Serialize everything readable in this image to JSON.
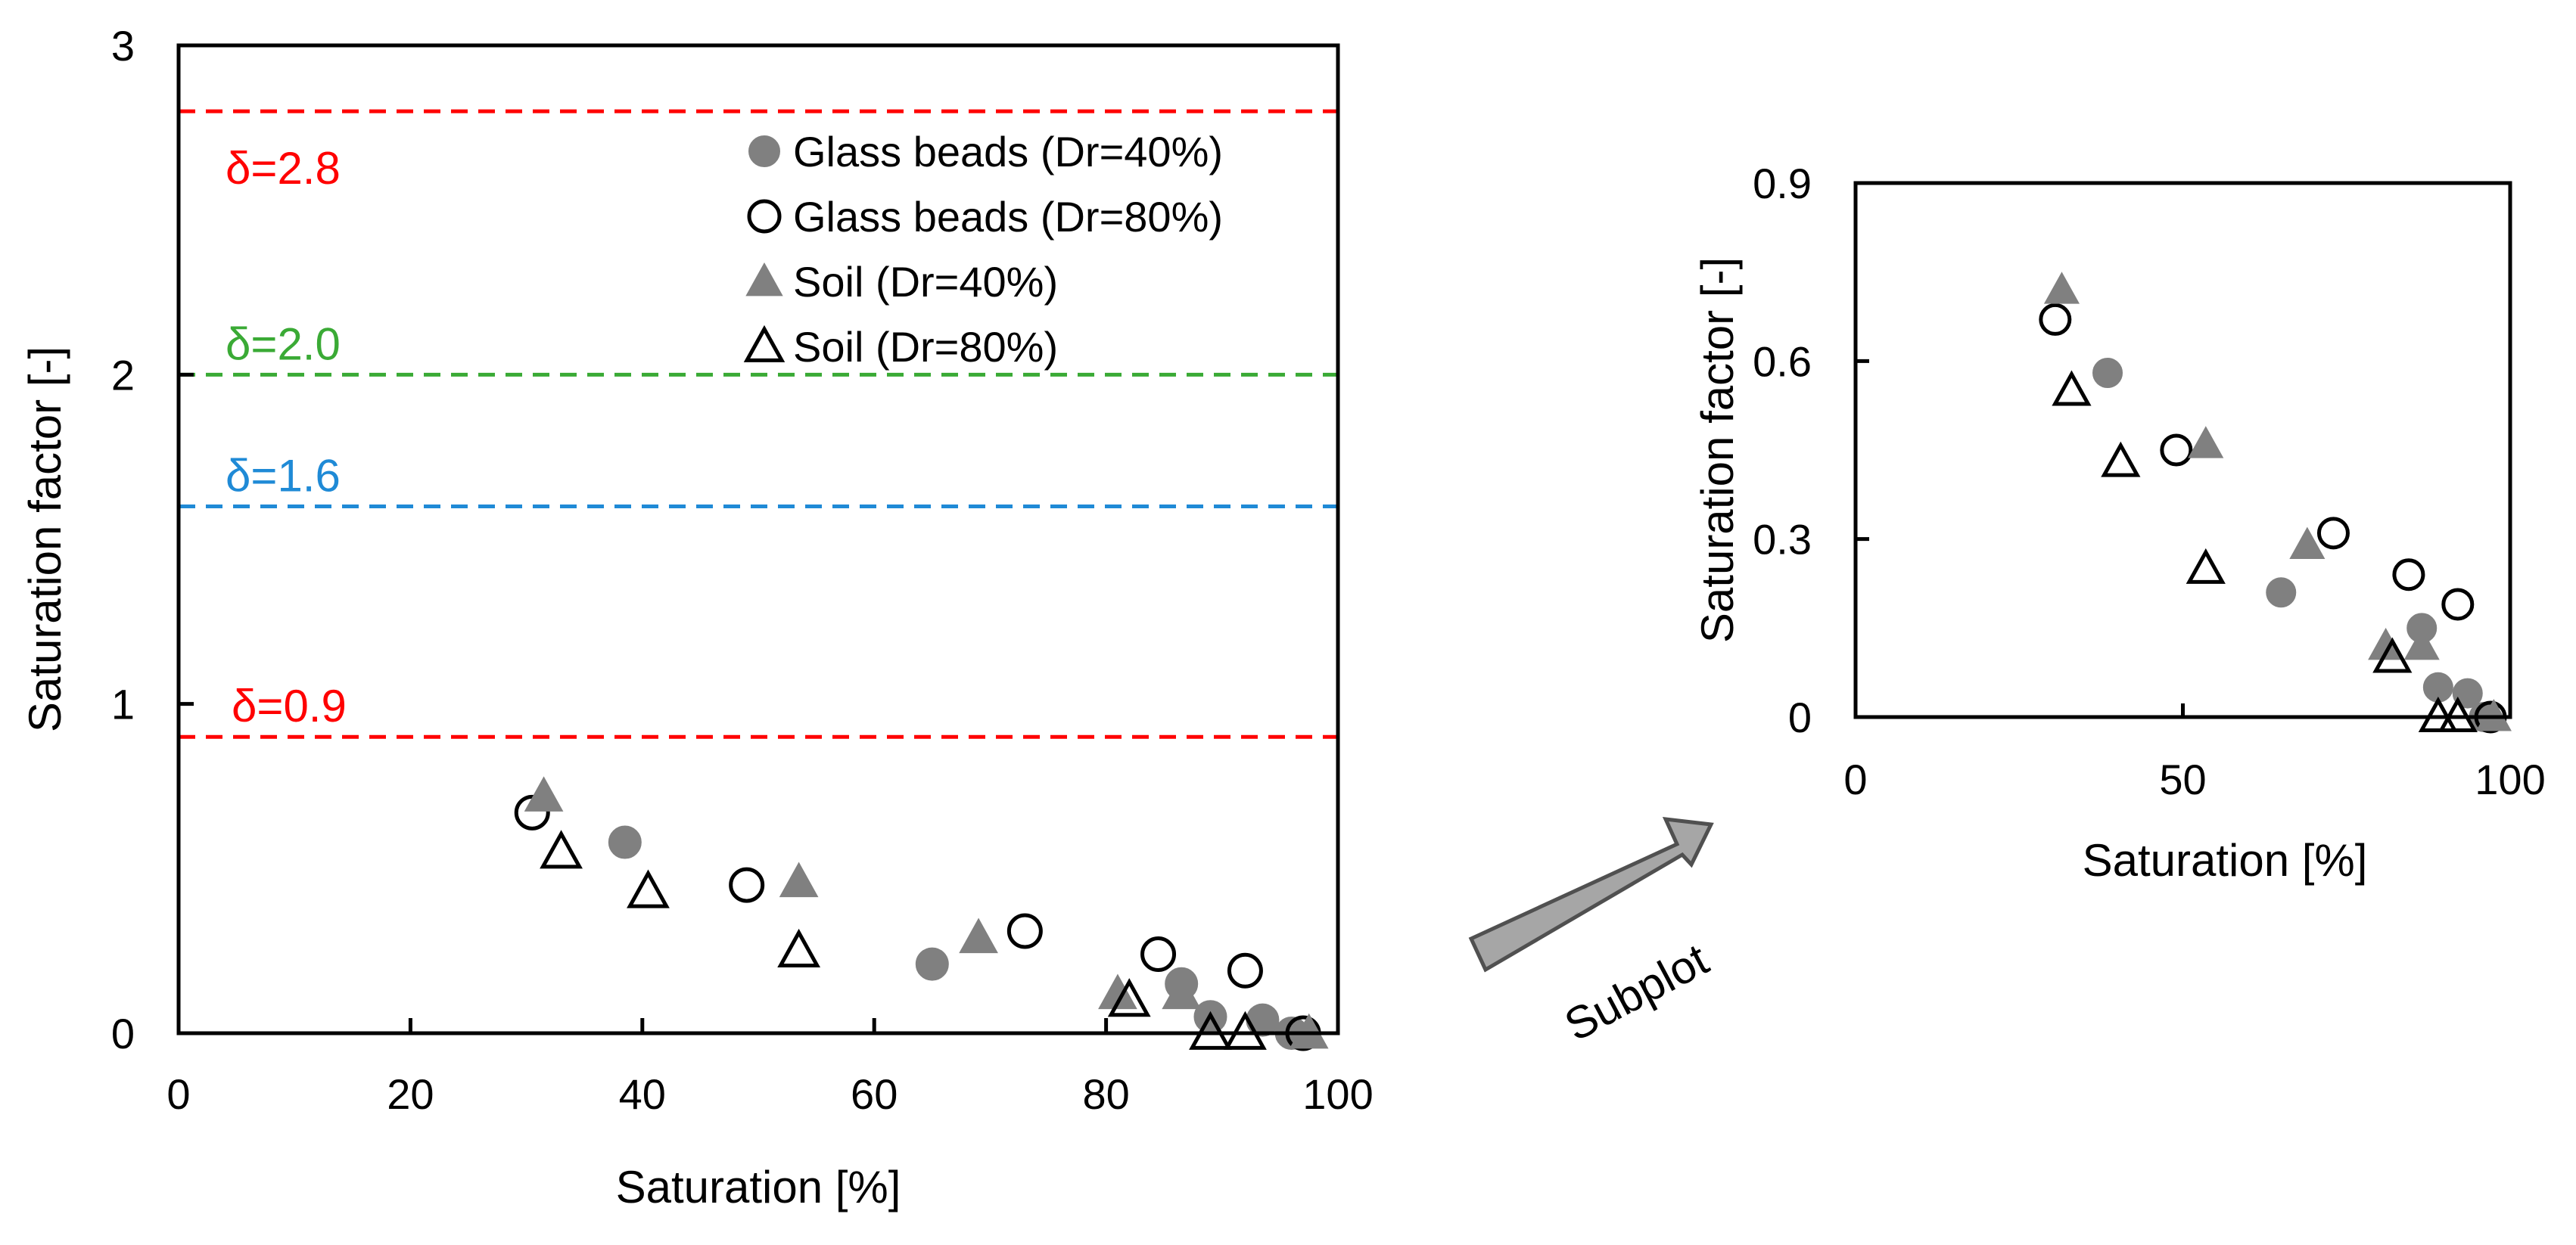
{
  "chart_data": [
    {
      "id": "main",
      "type": "scatter",
      "title": "",
      "xlabel": "Saturation [%]",
      "ylabel": "Saturation factor [-]",
      "xlim": [
        0,
        100
      ],
      "ylim": [
        0,
        3
      ],
      "xticks": [
        "0",
        "20",
        "40",
        "60",
        "80",
        "100"
      ],
      "yticks": [
        "0",
        "1",
        "2",
        "3"
      ],
      "grid": false,
      "legend_position": "top-right",
      "reference_lines": [
        {
          "y": 2.8,
          "label": "δ=2.8",
          "color": "#ff0000"
        },
        {
          "y": 2.0,
          "label": "δ=2.0",
          "color": "#3aaa35"
        },
        {
          "y": 1.6,
          "label": "δ=1.6",
          "color": "#1f8ad6"
        },
        {
          "y": 0.9,
          "label": "δ=0.9",
          "color": "#ff0000"
        }
      ],
      "series": [
        {
          "name": "Glass beads (Dr=40%)",
          "marker": "circle-filled",
          "points": [
            [
              38.5,
              0.58
            ],
            [
              65,
              0.21
            ],
            [
              86.5,
              0.15
            ],
            [
              89,
              0.05
            ],
            [
              93.5,
              0.04
            ],
            [
              96,
              0.0
            ]
          ]
        },
        {
          "name": "Glass beads (Dr=80%)",
          "marker": "circle-open",
          "points": [
            [
              30.5,
              0.67
            ],
            [
              49,
              0.45
            ],
            [
              73,
              0.31
            ],
            [
              84.5,
              0.24
            ],
            [
              92,
              0.19
            ],
            [
              97,
              0.0
            ]
          ]
        },
        {
          "name": "Soil (Dr=40%)",
          "marker": "triangle-filled",
          "points": [
            [
              31.5,
              0.72
            ],
            [
              53.5,
              0.46
            ],
            [
              69,
              0.29
            ],
            [
              81,
              0.12
            ],
            [
              86.5,
              0.12
            ],
            [
              97.5,
              0.0
            ]
          ]
        },
        {
          "name": "Soil (Dr=80%)",
          "marker": "triangle-open",
          "points": [
            [
              33,
              0.55
            ],
            [
              40.5,
              0.43
            ],
            [
              53.5,
              0.25
            ],
            [
              82,
              0.1
            ],
            [
              89,
              0.0
            ],
            [
              92,
              0.0
            ]
          ]
        }
      ]
    },
    {
      "id": "subplot",
      "type": "scatter",
      "title": "",
      "xlabel": "Saturation [%]",
      "ylabel": "Saturation factor [-]",
      "xlim": [
        0,
        100
      ],
      "ylim": [
        0,
        0.9
      ],
      "xticks": [
        "0",
        "50",
        "100"
      ],
      "yticks": [
        "0",
        "0.3",
        "0.6",
        "0.9"
      ],
      "grid": false
    }
  ],
  "annotation": {
    "label": "Subplot",
    "arrow_color": "#a6a6a6"
  }
}
